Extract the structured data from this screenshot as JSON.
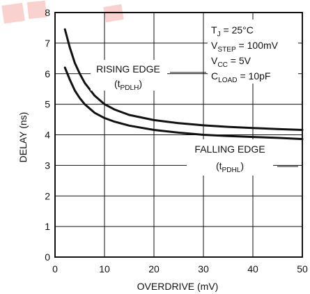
{
  "chart_data": {
    "type": "line",
    "xlabel": "OVERDRIVE (mV)",
    "ylabel": "DELAY (ns)",
    "xlim": [
      0,
      50
    ],
    "ylim": [
      0,
      8
    ],
    "x_ticks": [
      0,
      10,
      20,
      30,
      40,
      50
    ],
    "y_ticks": [
      0,
      1,
      2,
      3,
      4,
      5,
      6,
      7,
      8
    ],
    "grid": true,
    "line_color": "#111111",
    "watermark_color": "#e8342a",
    "conditions": [
      {
        "base": "T",
        "sub": "J",
        "rest": " = 25°C"
      },
      {
        "base": "V",
        "sub": "STEP",
        "rest": " = 100mV"
      },
      {
        "base": "V",
        "sub": "CC",
        "rest": " = 5V"
      },
      {
        "base": "C",
        "sub": "LOAD",
        "rest": " = 10pF"
      }
    ],
    "series": [
      {
        "name": "RISING EDGE",
        "symbol": {
          "base": "(t",
          "sub": "PDLH",
          "rest": ")"
        },
        "x": [
          2,
          3,
          4,
          5,
          6,
          8,
          10,
          12,
          15,
          20,
          25,
          30,
          35,
          40,
          45,
          50
        ],
        "y": [
          7.45,
          6.85,
          6.35,
          6.0,
          5.7,
          5.28,
          5.0,
          4.83,
          4.65,
          4.48,
          4.38,
          4.31,
          4.26,
          4.22,
          4.19,
          4.16
        ]
      },
      {
        "name": "FALLING EDGE",
        "symbol": {
          "base": "(t",
          "sub": "PDHL",
          "rest": ")"
        },
        "x": [
          2,
          3,
          4,
          5,
          6,
          8,
          10,
          12,
          15,
          20,
          25,
          30,
          35,
          40,
          45,
          50
        ],
        "y": [
          6.2,
          5.8,
          5.45,
          5.2,
          5.0,
          4.72,
          4.55,
          4.43,
          4.3,
          4.16,
          4.07,
          4.0,
          3.96,
          3.93,
          3.9,
          3.86
        ]
      }
    ]
  }
}
